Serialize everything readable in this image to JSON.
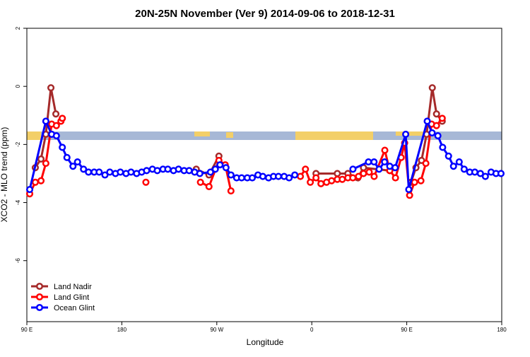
{
  "chart_data": {
    "type": "line",
    "title": "20N-25N November (Ver 9)   2014-09-06 to 2018-12-31",
    "x_label": "Longitude",
    "y_label": "XCO2 - MLO trend (ppm)",
    "xlim": [
      90,
      540
    ],
    "xticks": [
      {
        "value": 90,
        "label": "90 E"
      },
      180,
      {
        "value": 270,
        "label": "90 W"
      },
      {
        "value": 360,
        "label": "0"
      },
      {
        "value": 450,
        "label": "90 E"
      },
      {
        "value": 540,
        "label": "180"
      }
    ],
    "ylim": [
      -8.1,
      2
    ],
    "yticks": [
      2,
      0,
      -2,
      -4,
      -6
    ],
    "legend": "bottom-left",
    "series": [
      {
        "name": "Land Nadir",
        "color": "#a52a2a",
        "x": [
          98,
          103.4,
          108,
          112.8,
          117.5,
          null,
          250.5,
          262.6,
          272,
          null,
          364,
          384.2,
          394.2,
          403.6,
          409,
          433.9,
          null,
          454,
          458.7,
          464,
          468.8,
          474.2,
          478.2,
          483.6
        ],
        "values": [
          -2.8,
          -2.5,
          -1.65,
          -0.05,
          -0.95,
          null,
          -2.85,
          -3.05,
          -2.4,
          null,
          -3.0,
          -3.0,
          -3.0,
          -3.15,
          -2.8,
          -2.9,
          null,
          -3.3,
          -2.8,
          -2.55,
          -1.65,
          -0.05,
          -0.95,
          -1.2
        ]
      },
      {
        "name": "Land Glint",
        "color": "#ff0000",
        "x": [
          92.7,
          98,
          103.4,
          108,
          113.5,
          118,
          122.3,
          123.6,
          null,
          202.8,
          null,
          254.5,
          262.6,
          272,
          278,
          283.4,
          null,
          349.2,
          354,
          358.6,
          364,
          368.7,
          374,
          378.8,
          384.2,
          388.9,
          394.2,
          398.9,
          404.3,
          409,
          414.4,
          419.1,
          429.2,
          433.9,
          439.3,
          444.7,
          448,
          452.7,
          457.4,
          463.4,
          468.1,
          473.5,
          478.2,
          483.6
        ],
        "values": [
          -3.7,
          -3.3,
          -3.25,
          -2.65,
          -1.3,
          -1.35,
          -1.2,
          -1.1,
          null,
          -3.3,
          null,
          -3.3,
          -3.45,
          -2.55,
          -2.7,
          -3.6,
          null,
          -3.1,
          -2.85,
          -3.3,
          -3.15,
          -3.35,
          -3.3,
          -3.25,
          -3.2,
          -3.2,
          -3.15,
          -3.15,
          -3.1,
          -3.0,
          -2.95,
          -3.1,
          -2.2,
          -2.9,
          -3.15,
          -2.45,
          -1.95,
          -3.75,
          -3.3,
          -3.25,
          -2.65,
          -1.3,
          -1.35,
          -1.1
        ]
      },
      {
        "name": "Ocean Glint",
        "color": "#0000ff",
        "x": [
          92.7,
          108,
          113.5,
          118,
          123.6,
          128,
          133.7,
          138,
          143.7,
          148.4,
          153.8,
          158.5,
          164,
          168.6,
          174,
          178.6,
          184,
          188.7,
          194,
          198.8,
          203.5,
          209,
          213.6,
          219,
          223.6,
          229,
          233.7,
          239,
          243.8,
          249,
          253.9,
          264,
          268.6,
          273,
          278.7,
          283.4,
          288.8,
          293.5,
          298.9,
          303.6,
          309,
          313.6,
          319,
          323.7,
          328.4,
          333.8,
          338.5,
          343.9,
          null,
          399,
          413.7,
          419,
          423.8,
          429,
          433.9,
          439,
          449,
          451.9,
          469.4,
          474,
          479.5,
          484,
          489.6,
          494.3,
          499.7,
          504.4,
          509.7,
          514.5,
          519.8,
          524.5,
          529.9,
          534.6,
          539.3
        ],
        "values": [
          -3.55,
          -1.2,
          -1.65,
          -1.7,
          -2.1,
          -2.45,
          -2.75,
          -2.6,
          -2.85,
          -2.95,
          -2.95,
          -2.95,
          -3.05,
          -2.95,
          -3.0,
          -2.95,
          -3.0,
          -2.95,
          -3.0,
          -2.95,
          -2.9,
          -2.85,
          -2.9,
          -2.85,
          -2.85,
          -2.9,
          -2.85,
          -2.9,
          -2.9,
          -2.95,
          -3.0,
          -2.95,
          -2.85,
          -2.7,
          -2.8,
          -3.05,
          -3.15,
          -3.15,
          -3.15,
          -3.15,
          -3.05,
          -3.1,
          -3.15,
          -3.1,
          -3.1,
          -3.1,
          -3.15,
          -3.05,
          null,
          -2.85,
          -2.6,
          -2.6,
          -2.85,
          -2.6,
          -2.75,
          -2.8,
          -1.65,
          -3.55,
          -1.2,
          -1.6,
          -1.7,
          -2.1,
          -2.4,
          -2.75,
          -2.6,
          -2.85,
          -2.95,
          -2.95,
          -3.0,
          -3.1,
          -2.95,
          -3.0,
          -3.0
        ]
      }
    ]
  }
}
